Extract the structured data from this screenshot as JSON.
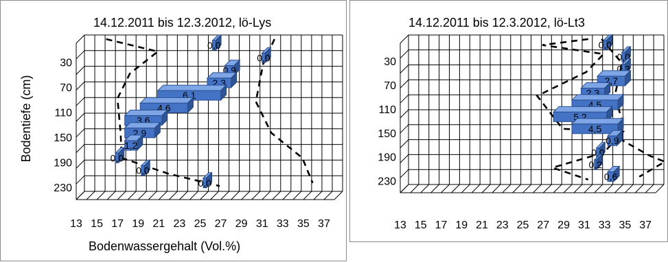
{
  "chart_data": [
    {
      "type": "bar",
      "title": "14.12.2011  bis  12.3.2012,  lö-Lys",
      "xlabel": "Bodenwassergehalt  (Vol.%)",
      "ylabel": "Bodentiefe (cm)",
      "x_ticks": [
        "13",
        "15",
        "17",
        "19",
        "21",
        "23",
        "25",
        "27",
        "29",
        "31",
        "33",
        "35",
        "37"
      ],
      "y_ticks": [
        "30",
        "70",
        "110",
        "150",
        "190",
        "230"
      ],
      "xlim": [
        13,
        38
      ],
      "ylim": [
        0,
        250
      ],
      "bars": [
        {
          "depth": 10,
          "x_start": 25.8,
          "x_end": 26.1,
          "value": "0,0"
        },
        {
          "depth": 30,
          "x_start": 30.6,
          "x_end": 30.9,
          "value": "0,0"
        },
        {
          "depth": 50,
          "x_start": 27.0,
          "x_end": 27.9,
          "value": "0,9"
        },
        {
          "depth": 70,
          "x_start": 25.3,
          "x_end": 27.6,
          "value": "2,3"
        },
        {
          "depth": 90,
          "x_start": 20.5,
          "x_end": 26.6,
          "value": "6,1"
        },
        {
          "depth": 110,
          "x_start": 18.8,
          "x_end": 23.4,
          "value": "4,6"
        },
        {
          "depth": 130,
          "x_start": 17.3,
          "x_end": 20.9,
          "value": "3,6"
        },
        {
          "depth": 150,
          "x_start": 17.3,
          "x_end": 20.2,
          "value": "2,9"
        },
        {
          "depth": 170,
          "x_start": 17.3,
          "x_end": 18.5,
          "value": "1,2"
        },
        {
          "depth": 190,
          "x_start": 16.4,
          "x_end": 16.7,
          "value": "0,0"
        },
        {
          "depth": 210,
          "x_start": 18.9,
          "x_end": 19.2,
          "value": "0,0"
        },
        {
          "depth": 230,
          "x_start": 24.9,
          "x_end": 25.2,
          "value": "0,0"
        }
      ],
      "series": [
        {
          "points": [
            [
              15.5,
              0
            ],
            [
              20.5,
              20
            ],
            [
              17.8,
              55
            ],
            [
              16.6,
              95
            ],
            [
              16.9,
              150
            ],
            [
              17.0,
              190
            ],
            [
              21.5,
              215
            ],
            [
              26.5,
              235
            ]
          ]
        },
        {
          "points": [
            [
              31.8,
              0
            ],
            [
              30.7,
              40
            ],
            [
              30.0,
              100
            ],
            [
              31.5,
              150
            ],
            [
              34.5,
              190
            ],
            [
              35.5,
              230
            ]
          ]
        }
      ]
    },
    {
      "type": "bar",
      "title": "14.12.2011  bis  12.3.2012,  lö-Lt3",
      "xlabel": "",
      "ylabel": "",
      "x_ticks": [
        "13",
        "15",
        "17",
        "19",
        "21",
        "23",
        "25",
        "27",
        "29",
        "31",
        "33",
        "35",
        "37"
      ],
      "y_ticks": [
        "30",
        "70",
        "110",
        "150",
        "190",
        "230"
      ],
      "xlim": [
        13,
        38
      ],
      "ylim": [
        0,
        250
      ],
      "bars": [
        {
          "depth": 10,
          "x_start": 32.5,
          "x_end": 32.8,
          "value": "0,0"
        },
        {
          "depth": 30,
          "x_start": 34.3,
          "x_end": 34.6,
          "value": "0,0"
        },
        {
          "depth": 50,
          "x_start": 34.3,
          "x_end": 34.6,
          "value": "0,3"
        },
        {
          "depth": 70,
          "x_start": 31.9,
          "x_end": 34.6,
          "value": "2,7"
        },
        {
          "depth": 90,
          "x_start": 30.3,
          "x_end": 32.6,
          "value": "2,3"
        },
        {
          "depth": 110,
          "x_start": 29.4,
          "x_end": 33.9,
          "value": "4,5"
        },
        {
          "depth": 130,
          "x_start": 27.6,
          "x_end": 32.8,
          "value": "5,2"
        },
        {
          "depth": 150,
          "x_start": 29.4,
          "x_end": 33.9,
          "value": "4,5"
        },
        {
          "depth": 170,
          "x_start": 32.9,
          "x_end": 33.8,
          "value": "0,9"
        },
        {
          "depth": 190,
          "x_start": 31.8,
          "x_end": 32.1,
          "value": "0,0"
        },
        {
          "depth": 210,
          "x_start": 31.6,
          "x_end": 31.8,
          "value": "0,2"
        },
        {
          "depth": 230,
          "x_start": 32.9,
          "x_end": 33.5,
          "value": "0,6"
        }
      ],
      "series": [
        {
          "points": [
            [
              31.0,
              0
            ],
            [
              26.5,
              10
            ],
            [
              32.5,
              25
            ],
            [
              30.8,
              55
            ],
            [
              26.0,
              95
            ],
            [
              28.5,
              150
            ],
            [
              34.4,
              155
            ],
            [
              32.5,
              190
            ],
            [
              27.5,
              215
            ],
            [
              31.0,
              235
            ]
          ]
        },
        {
          "points": [
            [
              32.3,
              0
            ],
            [
              34.3,
              40
            ],
            [
              33.6,
              95
            ],
            [
              34.3,
              135
            ],
            [
              33.9,
              165
            ],
            [
              37.0,
              195
            ],
            [
              38.5,
              205
            ],
            [
              36.0,
              230
            ]
          ]
        }
      ]
    }
  ]
}
